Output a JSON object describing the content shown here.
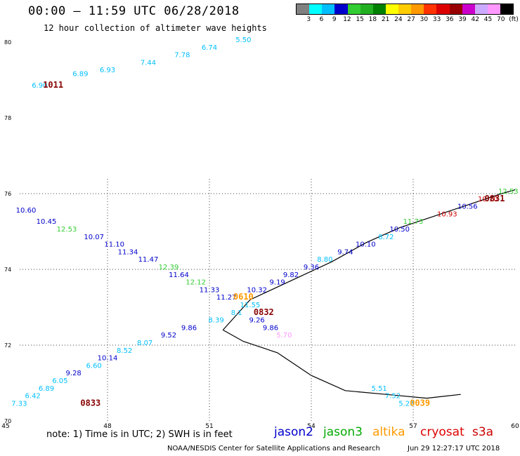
{
  "header": {
    "title": "00:00 – 11:59 UTC 06/28/2018",
    "subtitle": "12 hour collection of altimeter wave heights"
  },
  "legend": {
    "colors": [
      "#808080",
      "#00ffff",
      "#00bfff",
      "#0000cd",
      "#32cd32",
      "#22b022",
      "#008000",
      "#ffff00",
      "#ffcc00",
      "#ff9900",
      "#ff3300",
      "#dd0000",
      "#990000",
      "#cc00cc",
      "#ccaaff",
      "#ff99ff",
      "#000000"
    ],
    "labels": [
      "3",
      "6",
      "9",
      "12",
      "15",
      "18",
      "21",
      "24",
      "27",
      "30",
      "33",
      "36",
      "39",
      "42",
      "45",
      "70",
      "(ft)"
    ]
  },
  "axes": {
    "lon_ticks": [
      "45",
      "48",
      "51",
      "54",
      "57",
      "60"
    ],
    "lat_ticks": [
      "70",
      "72",
      "74",
      "76",
      "78",
      "80"
    ]
  },
  "chart_data": {
    "type": "scatter",
    "points": [
      {
        "lon": 46.0,
        "lat": 78.8,
        "t": "6.90",
        "c": "#00bfff"
      },
      {
        "lon": 47.2,
        "lat": 79.1,
        "t": "6.89",
        "c": "#00bfff"
      },
      {
        "lon": 48.0,
        "lat": 79.2,
        "t": "6.93",
        "c": "#00bfff"
      },
      {
        "lon": 49.2,
        "lat": 79.4,
        "t": "7.44",
        "c": "#00bfff"
      },
      {
        "lon": 50.2,
        "lat": 79.6,
        "t": "7.78",
        "c": "#00bfff"
      },
      {
        "lon": 51.0,
        "lat": 79.8,
        "t": "6.74",
        "c": "#00bfff"
      },
      {
        "lon": 52.0,
        "lat": 80.0,
        "t": "5.50",
        "c": "#00bfff"
      },
      {
        "lon": 45.6,
        "lat": 75.5,
        "t": "10.60",
        "c": "#0000cd"
      },
      {
        "lon": 46.2,
        "lat": 75.2,
        "t": "10.45",
        "c": "#0000cd"
      },
      {
        "lon": 46.8,
        "lat": 75.0,
        "t": "12.53",
        "c": "#32cd32"
      },
      {
        "lon": 47.6,
        "lat": 74.8,
        "t": "10.07",
        "c": "#0000cd"
      },
      {
        "lon": 48.2,
        "lat": 74.6,
        "t": "11.10",
        "c": "#0000cd"
      },
      {
        "lon": 48.6,
        "lat": 74.4,
        "t": "11.34",
        "c": "#0000cd"
      },
      {
        "lon": 49.2,
        "lat": 74.2,
        "t": "11.47",
        "c": "#0000cd"
      },
      {
        "lon": 49.8,
        "lat": 74.0,
        "t": "12.39",
        "c": "#32cd32"
      },
      {
        "lon": 50.1,
        "lat": 73.8,
        "t": "11.64",
        "c": "#0000cd"
      },
      {
        "lon": 50.6,
        "lat": 73.6,
        "t": "12.12",
        "c": "#32cd32"
      },
      {
        "lon": 51.0,
        "lat": 73.4,
        "t": "11.33",
        "c": "#0000cd"
      },
      {
        "lon": 51.5,
        "lat": 73.2,
        "t": "11.27",
        "c": "#0000cd"
      },
      {
        "lon": 52.4,
        "lat": 73.4,
        "t": "10.32",
        "c": "#0000cd"
      },
      {
        "lon": 52.2,
        "lat": 73.0,
        "t": "11.55",
        "c": "#00bfff"
      },
      {
        "lon": 51.8,
        "lat": 72.8,
        "t": "8.1",
        "c": "#00bfff"
      },
      {
        "lon": 51.2,
        "lat": 72.6,
        "t": "8.39",
        "c": "#00bfff"
      },
      {
        "lon": 50.4,
        "lat": 72.4,
        "t": "9.86",
        "c": "#0000cd"
      },
      {
        "lon": 49.8,
        "lat": 72.2,
        "t": "9.52",
        "c": "#0000cd"
      },
      {
        "lon": 49.1,
        "lat": 72.0,
        "t": "8.07",
        "c": "#00bfff"
      },
      {
        "lon": 48.5,
        "lat": 71.8,
        "t": "8.52",
        "c": "#00bfff"
      },
      {
        "lon": 48.0,
        "lat": 71.6,
        "t": "10.14",
        "c": "#0000cd"
      },
      {
        "lon": 47.6,
        "lat": 71.4,
        "t": "6.60",
        "c": "#00bfff"
      },
      {
        "lon": 47.0,
        "lat": 71.2,
        "t": "9.28",
        "c": "#0000cd"
      },
      {
        "lon": 46.6,
        "lat": 71.0,
        "t": "6.05",
        "c": "#00bfff"
      },
      {
        "lon": 46.2,
        "lat": 70.8,
        "t": "6.89",
        "c": "#00bfff"
      },
      {
        "lon": 45.8,
        "lat": 70.6,
        "t": "6.42",
        "c": "#00bfff"
      },
      {
        "lon": 45.4,
        "lat": 70.4,
        "t": "7.33",
        "c": "#00bfff"
      },
      {
        "lon": 53.0,
        "lat": 73.6,
        "t": "9.19",
        "c": "#0000cd"
      },
      {
        "lon": 53.4,
        "lat": 73.8,
        "t": "9.82",
        "c": "#0000cd"
      },
      {
        "lon": 54.0,
        "lat": 74.0,
        "t": "9.36",
        "c": "#0000cd"
      },
      {
        "lon": 54.4,
        "lat": 74.2,
        "t": "8.80",
        "c": "#00bfff"
      },
      {
        "lon": 55.0,
        "lat": 74.4,
        "t": "9.74",
        "c": "#0000cd"
      },
      {
        "lon": 55.6,
        "lat": 74.6,
        "t": "10.10",
        "c": "#0000cd"
      },
      {
        "lon": 56.2,
        "lat": 74.8,
        "t": "8.72",
        "c": "#00bfff"
      },
      {
        "lon": 56.6,
        "lat": 75.0,
        "t": "10.50",
        "c": "#0000cd"
      },
      {
        "lon": 57.0,
        "lat": 75.2,
        "t": "11.73",
        "c": "#32cd32"
      },
      {
        "lon": 58.0,
        "lat": 75.4,
        "t": "10.93",
        "c": "#cc0000"
      },
      {
        "lon": 58.6,
        "lat": 75.6,
        "t": "10.56",
        "c": "#0000cd"
      },
      {
        "lon": 59.2,
        "lat": 75.8,
        "t": "10.10",
        "c": "#cc0000"
      },
      {
        "lon": 59.8,
        "lat": 76.0,
        "t": "12.53",
        "c": "#32cd32"
      },
      {
        "lon": 52.4,
        "lat": 72.6,
        "t": "9.26",
        "c": "#0000cd"
      },
      {
        "lon": 52.8,
        "lat": 72.4,
        "t": "9.86",
        "c": "#0000cd"
      },
      {
        "lon": 53.2,
        "lat": 72.2,
        "t": "5.70",
        "c": "#ff99ff"
      },
      {
        "lon": 56.0,
        "lat": 70.8,
        "t": "5.51",
        "c": "#00bfff"
      },
      {
        "lon": 56.4,
        "lat": 70.6,
        "t": "7.52",
        "c": "#00bfff"
      },
      {
        "lon": 56.8,
        "lat": 70.4,
        "t": "5.23",
        "c": "#00bfff"
      }
    ],
    "pass_times": [
      {
        "lon": 46.4,
        "lat": 78.8,
        "t": "1011",
        "c": "#880000"
      },
      {
        "lon": 59.4,
        "lat": 75.8,
        "t": "0831",
        "c": "#880000"
      },
      {
        "lon": 52.0,
        "lat": 73.2,
        "t": "0610",
        "c": "#ff9900"
      },
      {
        "lon": 52.6,
        "lat": 72.8,
        "t": "0832",
        "c": "#880000"
      },
      {
        "lon": 47.5,
        "lat": 70.4,
        "t": "0833",
        "c": "#880000"
      },
      {
        "lon": 57.2,
        "lat": 70.4,
        "t": "0039",
        "c": "#ff9900"
      }
    ]
  },
  "footer": {
    "note": "note: 1) Time is in UTC; 2) SWH is in feet",
    "satellites": [
      {
        "name": "jason2",
        "color": "#0000cc"
      },
      {
        "name": "jason3",
        "color": "#00aa00"
      },
      {
        "name": "altika",
        "color": "#ff9900"
      },
      {
        "name": "cryosat",
        "color": "#dd0000"
      },
      {
        "name": "s3a",
        "color": "#cc0000"
      }
    ],
    "credit": "NOAA/NESDIS Center for Satellite Applications and Research",
    "timestamp": "Jun 29 12:27:17 UTC 2018"
  }
}
